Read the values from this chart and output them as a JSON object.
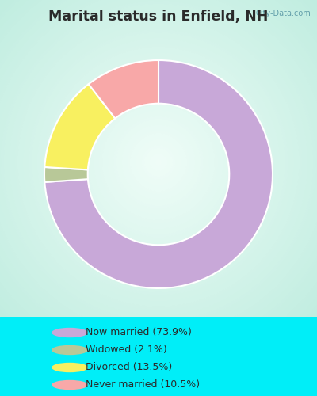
{
  "title": "Marital status in Enfield, NH",
  "slices": [
    73.9,
    2.1,
    13.5,
    10.5
  ],
  "labels": [
    "Now married (73.9%)",
    "Widowed (2.1%)",
    "Divorced (13.5%)",
    "Never married (10.5%)"
  ],
  "colors": [
    "#c8a8d8",
    "#b8c898",
    "#f8f060",
    "#f8a8a8"
  ],
  "bg_color": "#00eef8",
  "chart_bg_center": "#f0fdf8",
  "chart_bg_edge": "#c0ede0",
  "legend_bg": "#00eef8",
  "title_color": "#2a2a2a",
  "legend_text_color": "#2a2a2a",
  "donut_width": 0.38,
  "start_angle": 90,
  "watermark": "City-Data.com"
}
